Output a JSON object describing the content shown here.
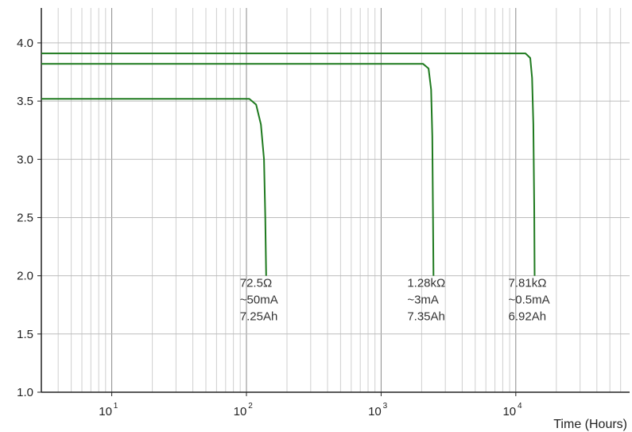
{
  "chart_data": {
    "type": "line",
    "xlabel": "Time (Hours)",
    "ylabel": "",
    "x_scale": "log",
    "xlim": [
      3,
      70000
    ],
    "ylim": [
      1.0,
      4.3
    ],
    "grid": true,
    "y_ticks": [
      "1.0",
      "1.5",
      "2.0",
      "2.5",
      "3.0",
      "3.5",
      "4.0"
    ],
    "x_ticks": [
      {
        "base": "10",
        "exp": "1",
        "value": 10
      },
      {
        "base": "10",
        "exp": "2",
        "value": 100
      },
      {
        "base": "10",
        "exp": "3",
        "value": 1000
      },
      {
        "base": "10",
        "exp": "4",
        "value": 10000
      }
    ],
    "line_color": "#1f7a1f",
    "series": [
      {
        "points": [
          [
            3,
            3.52
          ],
          [
            105,
            3.52
          ],
          [
            118,
            3.47
          ],
          [
            128,
            3.3
          ],
          [
            135,
            3.0
          ],
          [
            138,
            2.5
          ],
          [
            140,
            2.0
          ]
        ],
        "annotation": [
          "72.5Ω",
          "~50mA",
          "7.25Ah"
        ]
      },
      {
        "points": [
          [
            3,
            3.82
          ],
          [
            2050,
            3.82
          ],
          [
            2250,
            3.78
          ],
          [
            2350,
            3.6
          ],
          [
            2400,
            3.2
          ],
          [
            2430,
            2.5
          ],
          [
            2450,
            2.0
          ]
        ],
        "annotation": [
          "1.28kΩ",
          "~3mA",
          " 7.35Ah"
        ]
      },
      {
        "points": [
          [
            3,
            3.91
          ],
          [
            11800,
            3.91
          ],
          [
            12800,
            3.87
          ],
          [
            13200,
            3.7
          ],
          [
            13500,
            3.3
          ],
          [
            13700,
            2.6
          ],
          [
            13800,
            2.0
          ]
        ],
        "annotation": [
          "7.81kΩ",
          "~0.5mA",
          "6.92Ah"
        ]
      }
    ]
  }
}
